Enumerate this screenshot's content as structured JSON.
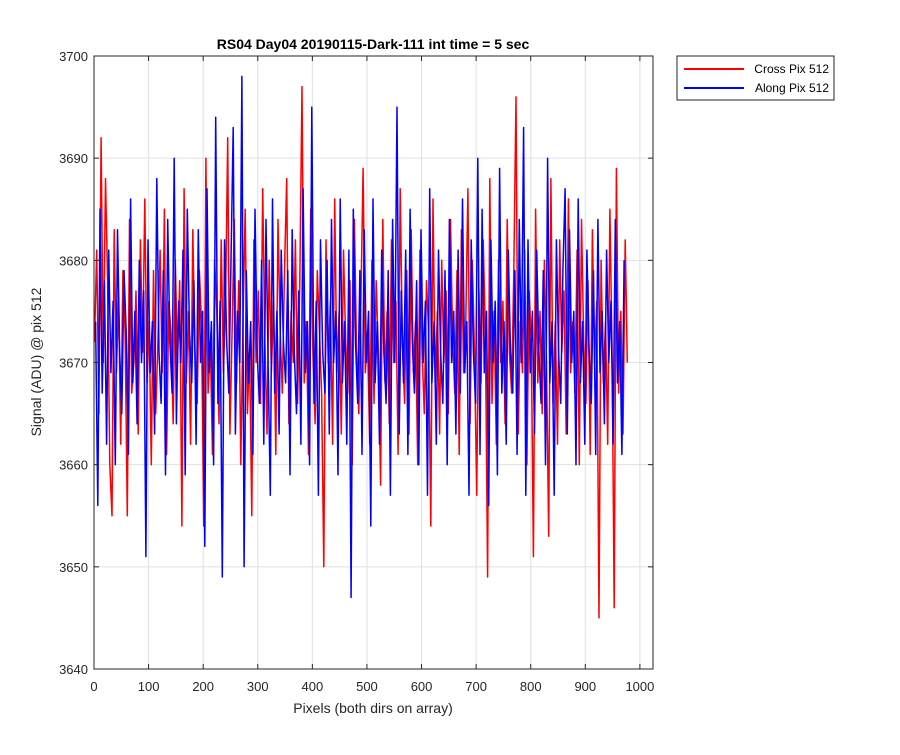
{
  "chart_data": {
    "type": "line",
    "title": "RS04 Day04 20190115-Dark-111 int time = 5 sec",
    "xlabel": "Pixels (both dirs on array)",
    "ylabel": "Signal (ADU) @ pix 512",
    "xlim": [
      0,
      1024
    ],
    "ylim": [
      3640,
      3700
    ],
    "xticks": [
      0,
      100,
      200,
      300,
      400,
      500,
      600,
      700,
      800,
      900,
      1000
    ],
    "yticks": [
      3640,
      3650,
      3660,
      3670,
      3680,
      3690,
      3700
    ],
    "grid": true,
    "legend_position": "outside-top-right",
    "series": [
      {
        "name": "Cross Pix 512",
        "color": "#ff0000",
        "x_start": 1,
        "x_step": 4,
        "values": [
          3672,
          3681,
          3665,
          3692,
          3670,
          3688,
          3678,
          3660,
          3655,
          3683,
          3669,
          3676,
          3662,
          3679,
          3673,
          3655,
          3684,
          3667,
          3670,
          3677,
          3663,
          3682,
          3671,
          3686,
          3668,
          3674,
          3660,
          3679,
          3665,
          3672,
          3681,
          3669,
          3685,
          3661,
          3676,
          3673,
          3664,
          3680,
          3670,
          3678,
          3654,
          3687,
          3668,
          3675,
          3662,
          3683,
          3671,
          3666,
          3679,
          3674,
          3654,
          3690,
          3667,
          3672,
          3661,
          3680,
          3675,
          3664,
          3682,
          3669,
          3676,
          3692,
          3663,
          3673,
          3684,
          3668,
          3678,
          3660,
          3674,
          3685,
          3665,
          3671,
          3655,
          3682,
          3670,
          3677,
          3666,
          3687,
          3672,
          3663,
          3680,
          3669,
          3676,
          3661,
          3684,
          3673,
          3667,
          3679,
          3688,
          3664,
          3675,
          3670,
          3682,
          3666,
          3678,
          3697,
          3668,
          3674,
          3661,
          3685,
          3671,
          3664,
          3679,
          3673,
          3667,
          3650,
          3682,
          3670,
          3676,
          3662,
          3686,
          3669,
          3675,
          3663,
          3681,
          3672,
          3667,
          3678,
          3660,
          3684,
          3671,
          3665,
          3676,
          3689,
          3669,
          3673,
          3662,
          3680,
          3666,
          3678,
          3671,
          3658,
          3684,
          3668,
          3675,
          3664,
          3682,
          3670,
          3676,
          3661,
          3687,
          3672,
          3666,
          3679,
          3663,
          3683,
          3669,
          3674,
          3660,
          3681,
          3671,
          3665,
          3678,
          3673,
          3654,
          3686,
          3668,
          3675,
          3663,
          3680,
          3670,
          3677,
          3665,
          3684,
          3672,
          3667,
          3679,
          3661,
          3683,
          3669,
          3674,
          3687,
          3664,
          3680,
          3671,
          3657,
          3677,
          3668,
          3682,
          3673,
          3649,
          3688,
          3666,
          3675,
          3662,
          3680,
          3670,
          3676,
          3664,
          3684,
          3671,
          3667,
          3679,
          3696,
          3663,
          3674,
          3669,
          3681,
          3660,
          3677,
          3672,
          3651,
          3685,
          3668,
          3675,
          3665,
          3680,
          3670,
          3653,
          3688,
          3666,
          3674,
          3662,
          3682,
          3671,
          3677,
          3663,
          3686,
          3669,
          3674,
          3667,
          3681,
          3660,
          3684,
          3672,
          3666,
          3678,
          3661,
          3683,
          3670,
          3676,
          3645,
          3680,
          3668,
          3674,
          3662,
          3685,
          3671,
          3646,
          3689,
          3667,
          3675,
          3663,
          3682,
          3670
        ]
      },
      {
        "name": "Along Pix 512",
        "color": "#0000ff",
        "x_start": 3,
        "x_step": 4,
        "values": [
          3674,
          3656,
          3685,
          3667,
          3678,
          3662,
          3681,
          3669,
          3676,
          3660,
          3683,
          3671,
          3665,
          3679,
          3673,
          3661,
          3686,
          3668,
          3675,
          3664,
          3680,
          3670,
          3677,
          3651,
          3682,
          3669,
          3674,
          3663,
          3688,
          3671,
          3666,
          3679,
          3659,
          3684,
          3672,
          3667,
          3690,
          3664,
          3676,
          3670,
          3681,
          3659,
          3685,
          3673,
          3668,
          3678,
          3662,
          3683,
          3670,
          3675,
          3652,
          3687,
          3669,
          3674,
          3660,
          3694,
          3666,
          3676,
          3649,
          3682,
          3672,
          3667,
          3680,
          3693,
          3663,
          3675,
          3670,
          3698,
          3650,
          3679,
          3668,
          3674,
          3661,
          3685,
          3671,
          3666,
          3680,
          3662,
          3684,
          3670,
          3657,
          3686,
          3667,
          3675,
          3663,
          3681,
          3672,
          3668,
          3679,
          3659,
          3683,
          3671,
          3665,
          3677,
          3662,
          3687,
          3669,
          3674,
          3660,
          3695,
          3666,
          3676,
          3657,
          3682,
          3671,
          3667,
          3680,
          3663,
          3684,
          3670,
          3675,
          3659,
          3686,
          3668,
          3674,
          3662,
          3681,
          3647,
          3685,
          3672,
          3666,
          3679,
          3661,
          3683,
          3670,
          3675,
          3654,
          3686,
          3668,
          3674,
          3662,
          3681,
          3671,
          3666,
          3679,
          3657,
          3684,
          3670,
          3695,
          3663,
          3677,
          3668,
          3681,
          3661,
          3685,
          3672,
          3667,
          3678,
          3660,
          3683,
          3670,
          3676,
          3657,
          3687,
          3668,
          3674,
          3662,
          3681,
          3671,
          3666,
          3679,
          3660,
          3684,
          3670,
          3675,
          3663,
          3681,
          3667,
          3686,
          3669,
          3674,
          3657,
          3682,
          3671,
          3666,
          3690,
          3661,
          3685,
          3669,
          3675,
          3656,
          3682,
          3670,
          3676,
          3659,
          3689,
          3667,
          3674,
          3662,
          3681,
          3671,
          3667,
          3679,
          3661,
          3684,
          3670,
          3693,
          3657,
          3682,
          3669,
          3675,
          3663,
          3681,
          3671,
          3666,
          3679,
          3660,
          3690,
          3668,
          3674,
          3657,
          3682,
          3671,
          3666,
          3679,
          3687,
          3663,
          3683,
          3670,
          3675,
          3660,
          3686,
          3668,
          3674,
          3662,
          3681,
          3671,
          3666,
          3679,
          3661,
          3684,
          3669,
          3675,
          3664,
          3681,
          3670,
          3676,
          3662,
          3684,
          3668,
          3674,
          3661,
          3680
        ]
      }
    ]
  }
}
